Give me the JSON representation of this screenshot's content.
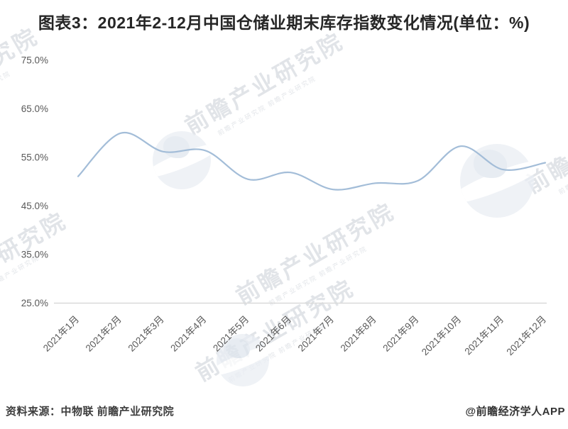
{
  "title": "图表3：2021年2-12月中国仓储业期末库存指数变化情况(单位：%)",
  "footer": {
    "source": "资料来源：中物联 前瞻产业研究院",
    "handle": "@前瞻经济学人APP"
  },
  "watermark": {
    "text": "前瞻产业研究院",
    "subtext": "前瞻产业研究院 前瞻产业研究院",
    "logo_name": "qianzhan-globe-watermark"
  },
  "colors": {
    "line": "#a3bdd8",
    "axis_line": "#d9d9d9",
    "axis_text": "#595959",
    "title_text": "#262626",
    "watermark_text": "#c9ced6"
  },
  "chart_data": {
    "type": "line",
    "title": "图表3：2021年2-12月中国仓储业期末库存指数变化情况(单位：%)",
    "categories": [
      "2021年1月",
      "2021年2月",
      "2021年3月",
      "2021年4月",
      "2021年5月",
      "2021年6月",
      "2021年7月",
      "2021年8月",
      "2021年9月",
      "2021年10月",
      "2021年11月",
      "2021年12月"
    ],
    "series": [
      {
        "name": "中国仓储业期末库存指数",
        "values": [
          51.1,
          60.0,
          56.2,
          56.4,
          50.5,
          51.9,
          48.4,
          49.7,
          50.2,
          57.3,
          52.5,
          53.9
        ]
      }
    ],
    "unit": "%",
    "xlabel": "",
    "ylabel": "",
    "ylim": [
      25,
      75
    ],
    "yticks": [
      75,
      65,
      55,
      45,
      35,
      25
    ],
    "ytick_suffix": "%",
    "ytick_decimals": 1,
    "grid": false,
    "legend_position": "none",
    "line_smooth": true
  }
}
